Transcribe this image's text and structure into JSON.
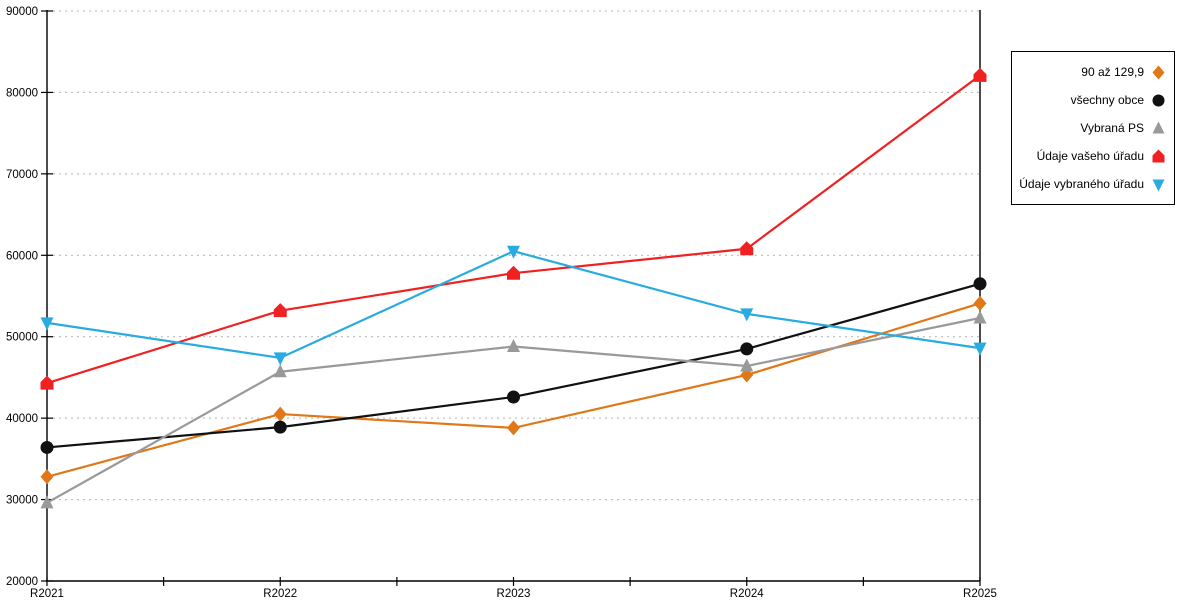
{
  "chart_data": {
    "type": "line",
    "categories": [
      "R2021",
      "R2022",
      "R2023",
      "R2024",
      "R2025"
    ],
    "series": [
      {
        "name": "90 až 129,9",
        "color": "#e07818",
        "marker": "diamond",
        "values": [
          32800,
          40500,
          38800,
          45300,
          54100
        ]
      },
      {
        "name": "všechny obce",
        "color": "#111111",
        "marker": "circle",
        "values": [
          36400,
          38900,
          42600,
          48500,
          56500
        ]
      },
      {
        "name": "Vybraná PS",
        "color": "#999999",
        "marker": "triangle-up",
        "values": [
          29600,
          45700,
          48800,
          46400,
          52300
        ]
      },
      {
        "name": "Údaje vašeho úřadu",
        "color": "#ee2222",
        "marker": "pentagon",
        "values": [
          44300,
          53200,
          57800,
          60800,
          82100
        ]
      },
      {
        "name": "Údaje vybraného úřadu",
        "color": "#29abe2",
        "marker": "triangle-down",
        "values": [
          51700,
          47400,
          60500,
          52800,
          48600
        ]
      }
    ],
    "title": "",
    "xlabel": "",
    "ylabel": "",
    "ylim": [
      20000,
      90000
    ],
    "ytick_step": 10000,
    "ytick_labels": [
      "20000",
      "30000",
      "40000",
      "50000",
      "60000",
      "70000",
      "80000",
      "90000"
    ],
    "grid": "horizontal-dotted",
    "gridline_color": "#b3b3b3",
    "axis_color": "#000000",
    "legend_position": "right"
  }
}
